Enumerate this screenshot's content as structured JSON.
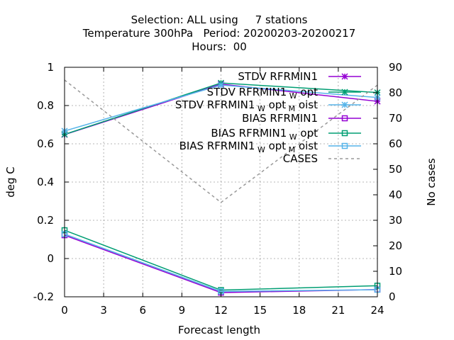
{
  "chart_data": {
    "type": "line",
    "title_lines": [
      "Selection: ALL using     7 stations",
      "Temperature 300hPa   Period: 20200203-20200217",
      "Hours:  00"
    ],
    "xlabel": "Forecast length",
    "ylabel": "deg C",
    "y2label": "No cases",
    "xlim": [
      0,
      24
    ],
    "ylim": [
      -0.2,
      1.0
    ],
    "y2lim": [
      0,
      90
    ],
    "x_ticks": [
      "0",
      "3",
      "6",
      "9",
      "12",
      "15",
      "18",
      "21",
      "24"
    ],
    "y_ticks": [
      "-0.2",
      "0",
      "0.2",
      "0.4",
      "0.6",
      "0.8",
      "1"
    ],
    "y2_ticks": [
      "0",
      "10",
      "20",
      "30",
      "40",
      "50",
      "60",
      "70",
      "80",
      "90"
    ],
    "grid": true,
    "legend_position": "top-right",
    "x": [
      0,
      12,
      24
    ],
    "series": [
      {
        "name_main": "STDV RFRMIN1",
        "name_sub1": "",
        "name_mid": "",
        "name_sub2": "",
        "name_end": "",
        "axis": "y",
        "marker": "x",
        "color": "#9400d3",
        "dash": false,
        "values": [
          0.648,
          0.912,
          0.822
        ]
      },
      {
        "name_main": "STDV RFRMIN1",
        "name_sub1": "W",
        "name_mid": "opt",
        "name_sub2": "",
        "name_end": "",
        "axis": "y",
        "marker": "x",
        "color": "#009e73",
        "dash": false,
        "values": [
          0.649,
          0.918,
          0.868
        ]
      },
      {
        "name_main": "STDV RFRMIN1",
        "name_sub1": "W",
        "name_mid": "opt",
        "name_sub2": "M",
        "name_end": "oist",
        "axis": "y",
        "marker": "x",
        "color": "#56b4e9",
        "dash": false,
        "values": [
          0.667,
          0.907,
          0.842
        ]
      },
      {
        "name_main": "BIAS RFRMIN1",
        "name_sub1": "",
        "name_mid": "",
        "name_sub2": "",
        "name_end": "",
        "axis": "y",
        "marker": "square",
        "color": "#9400d3",
        "dash": false,
        "values": [
          0.122,
          -0.178,
          -0.162
        ]
      },
      {
        "name_main": "BIAS RFRMIN1",
        "name_sub1": "W",
        "name_mid": "opt",
        "name_sub2": "",
        "name_end": "",
        "axis": "y",
        "marker": "square",
        "color": "#009e73",
        "dash": false,
        "values": [
          0.148,
          -0.165,
          -0.142
        ]
      },
      {
        "name_main": "BIAS RFRMIN1",
        "name_sub1": "W",
        "name_mid": "opt",
        "name_sub2": "M",
        "name_end": "oist",
        "axis": "y",
        "marker": "square",
        "color": "#56b4e9",
        "dash": false,
        "values": [
          0.128,
          -0.172,
          -0.163
        ]
      },
      {
        "name_main": "CASES",
        "name_sub1": "",
        "name_mid": "",
        "name_sub2": "",
        "name_end": "",
        "axis": "y2",
        "marker": "none",
        "color": "#999999",
        "dash": true,
        "values": [
          85,
          37,
          83
        ]
      }
    ]
  }
}
